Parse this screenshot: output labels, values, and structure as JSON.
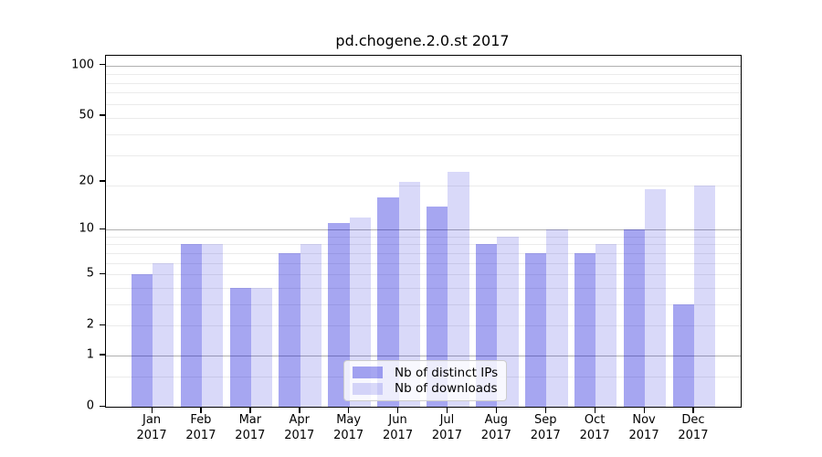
{
  "title": "pd.chogene.2.0.st 2017",
  "legend": {
    "items": [
      {
        "label": "Nb of distinct IPs"
      },
      {
        "label": "Nb of downloads"
      }
    ]
  },
  "chart_data": {
    "type": "bar",
    "title": "pd.chogene.2.0.st 2017",
    "categories": [
      "Jan",
      "Feb",
      "Mar",
      "Apr",
      "May",
      "Jun",
      "Jul",
      "Aug",
      "Sep",
      "Oct",
      "Nov",
      "Dec"
    ],
    "x_tick_second_line": "2017",
    "series": [
      {
        "name": "Nb of distinct IPs",
        "color": "rgba(0, 0, 216, 0.35)",
        "approx_hex_on_white": "#a6a6f1",
        "values": [
          5,
          8,
          4,
          7,
          11,
          16,
          14,
          8,
          7,
          7,
          10,
          3
        ]
      },
      {
        "name": "Nb of downloads",
        "color": "rgba(0, 0, 216, 0.15)",
        "approx_hex_on_white": "#d9d9f9",
        "values": [
          6,
          8,
          4,
          8,
          12,
          20,
          23,
          9,
          10,
          8,
          18,
          19
        ]
      }
    ],
    "xlabel": "",
    "ylabel": "",
    "yscale": "log10(value+1)",
    "yticks": [
      0,
      1,
      2,
      5,
      10,
      20,
      50,
      100
    ],
    "ylim": [
      0,
      114
    ],
    "grid": {
      "major_values": [
        1,
        10,
        100
      ],
      "minor_values": [
        0.5,
        2,
        3,
        4,
        5,
        6,
        7,
        8,
        9,
        19,
        29,
        39,
        49,
        59,
        69,
        79,
        89
      ]
    },
    "legend_position": "lower center",
    "colors": {
      "grid_major": "#b0b0b0",
      "grid_minor": "#ebebeb",
      "axis_frame": "#000000",
      "background": "#ffffff"
    }
  }
}
